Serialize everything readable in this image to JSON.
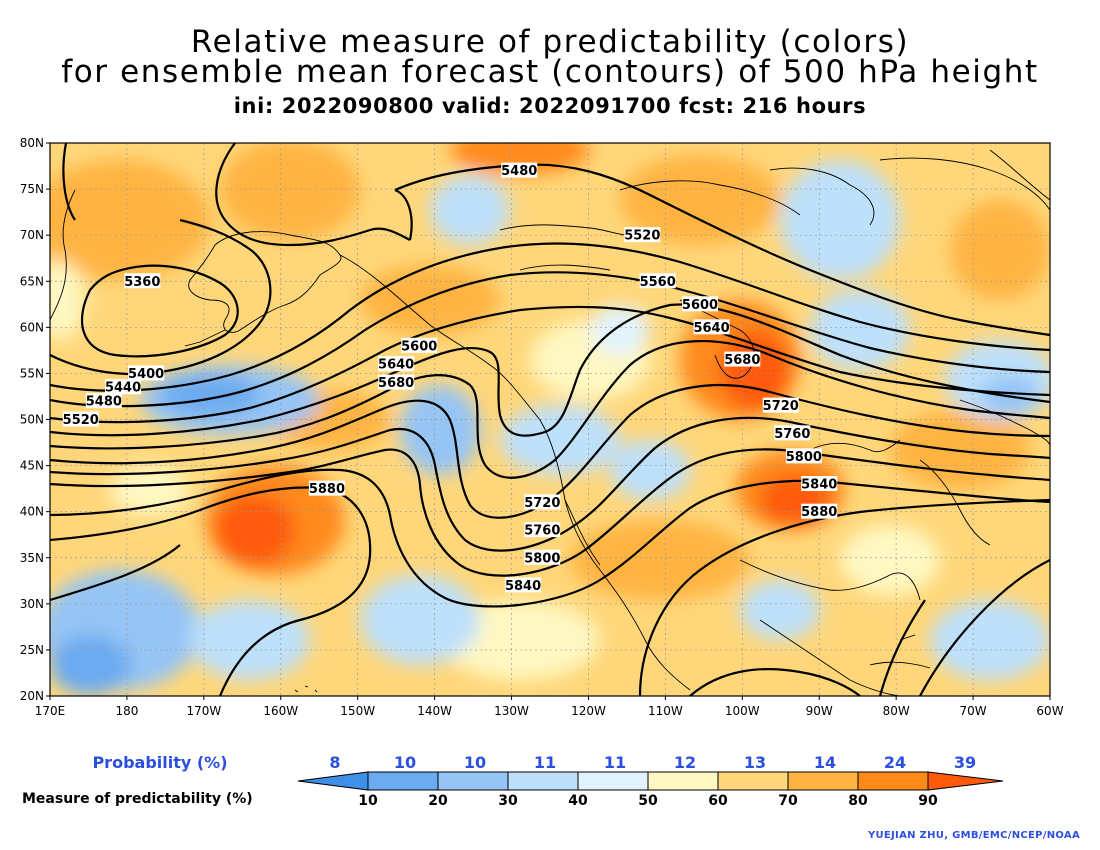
{
  "title": {
    "line1": "Relative measure of predictability (colors)",
    "line2": "for ensemble mean forecast (contours) of 500 hPa height",
    "line3": "ini: 2022090800 valid: 2022091700 fcst: 216 hours"
  },
  "lat_labels": [
    "80N",
    "75N",
    "70N",
    "65N",
    "60N",
    "55N",
    "50N",
    "45N",
    "40N",
    "35N",
    "30N",
    "25N",
    "20N"
  ],
  "lon_labels": [
    "170E",
    "180",
    "170W",
    "160W",
    "150W",
    "140W",
    "130W",
    "120W",
    "110W",
    "100W",
    "90W",
    "80W",
    "70W",
    "60W"
  ],
  "contour_labels": [
    {
      "text": "5360",
      "lat": 65,
      "lon": -178
    },
    {
      "text": "5400",
      "lat": 55,
      "lon": -177.5
    },
    {
      "text": "5440",
      "lat": 53.5,
      "lon": -180.5
    },
    {
      "text": "5480",
      "lat": 52,
      "lon": -183
    },
    {
      "text": "5520",
      "lat": 50,
      "lon": -186
    },
    {
      "text": "5480",
      "lat": 77,
      "lon": -129
    },
    {
      "text": "5520",
      "lat": 70,
      "lon": -113
    },
    {
      "text": "5560",
      "lat": 65,
      "lon": -111
    },
    {
      "text": "5600",
      "lat": 62.5,
      "lon": -105.5
    },
    {
      "text": "5600",
      "lat": 58,
      "lon": -142
    },
    {
      "text": "5640",
      "lat": 60,
      "lon": -104
    },
    {
      "text": "5640",
      "lat": 56,
      "lon": -145
    },
    {
      "text": "5680",
      "lat": 56.5,
      "lon": -100
    },
    {
      "text": "5680",
      "lat": 54,
      "lon": -145
    },
    {
      "text": "5720",
      "lat": 51.5,
      "lon": -95
    },
    {
      "text": "5720",
      "lat": 41,
      "lon": -126
    },
    {
      "text": "5760",
      "lat": 48.5,
      "lon": -93.5
    },
    {
      "text": "5760",
      "lat": 38,
      "lon": -126
    },
    {
      "text": "5800",
      "lat": 46,
      "lon": -92
    },
    {
      "text": "5800",
      "lat": 35,
      "lon": -126
    },
    {
      "text": "5840",
      "lat": 43,
      "lon": -90
    },
    {
      "text": "5840",
      "lat": 32,
      "lon": -128.5
    },
    {
      "text": "5880",
      "lat": 42.5,
      "lon": -154
    },
    {
      "text": "5880",
      "lat": 40,
      "lon": -90
    }
  ],
  "legend": {
    "probability_label": "Probability (%)",
    "probability_values": [
      "8",
      "10",
      "10",
      "11",
      "11",
      "12",
      "13",
      "14",
      "24",
      "39"
    ],
    "measure_label": "Measure of predictability (%)",
    "measure_ticks": [
      "10",
      "20",
      "30",
      "40",
      "50",
      "60",
      "70",
      "80",
      "90"
    ],
    "colors": [
      "#3d8fe8",
      "#6aaaf0",
      "#95c4f5",
      "#bde0fb",
      "#e2f3fd",
      "#fff8c2",
      "#ffd77a",
      "#ffb442",
      "#ff8a1a",
      "#ff5a0a"
    ]
  },
  "credit": "YUEJIAN ZHU, GMB/EMC/NCEP/NOAA"
}
